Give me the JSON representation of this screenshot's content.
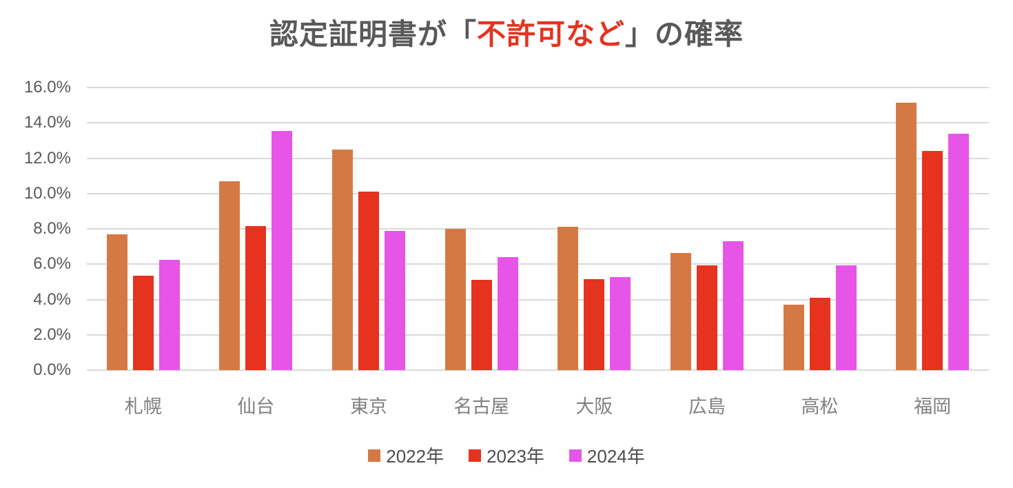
{
  "page": {
    "background": "#FFFFFF"
  },
  "title": {
    "full": "認定証明書が「不許可など」の確率",
    "prefix": "認定証明書が「",
    "highlight": "不許可など",
    "suffix": "」の確率",
    "text_color": "#595959",
    "highlight_color": "#E5331F"
  },
  "chart_data": {
    "type": "bar",
    "title": "認定証明書が「不許可など」の確率",
    "categories": [
      "札幌",
      "仙台",
      "東京",
      "名古屋",
      "大阪",
      "広島",
      "高松",
      "福岡"
    ],
    "series": [
      {
        "name": "2022年",
        "color": "#D57944",
        "values": [
          7.7,
          10.7,
          12.5,
          8.0,
          8.1,
          6.65,
          3.7,
          15.15
        ]
      },
      {
        "name": "2023年",
        "color": "#E5331F",
        "values": [
          5.35,
          8.15,
          10.1,
          5.1,
          5.15,
          5.95,
          4.1,
          12.4
        ]
      },
      {
        "name": "2024年",
        "color": "#E655E8",
        "values": [
          6.25,
          13.55,
          7.9,
          6.4,
          5.25,
          7.3,
          5.95,
          13.4
        ]
      }
    ],
    "ylim": [
      0,
      16
    ],
    "ytick_step": 2,
    "ytick_labels": [
      "0.0%",
      "2.0%",
      "4.0%",
      "6.0%",
      "8.0%",
      "10.0%",
      "12.0%",
      "14.0%",
      "16.0%"
    ],
    "xlabel": "",
    "ylabel": "",
    "grid": true,
    "gridline_color": "#D9D9D9",
    "axis_label_color": "#595959",
    "category_label_color": "#808080",
    "legend_position": "bottom",
    "legend_text_color": "#4D4D4D"
  }
}
